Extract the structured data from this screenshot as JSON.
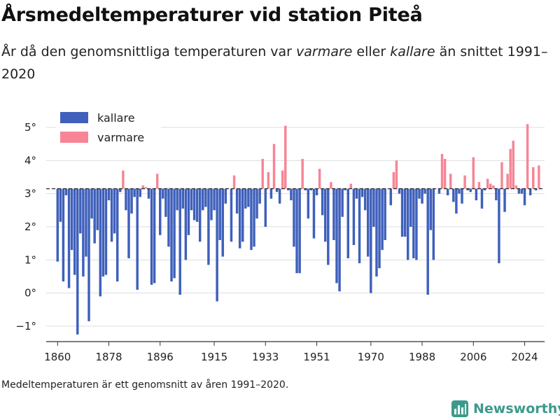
{
  "title": "Årsmedeltemperaturer vid station Piteå",
  "subtitle": {
    "part1": "År då den genomsnittliga temperaturen var ",
    "em1": "varmare",
    "part2": " eller ",
    "em2": "kallare",
    "part3": " än snittet 1991–2020"
  },
  "footnote": "Medeltemperaturen är ett genomsnitt av åren 1991–2020.",
  "brand": {
    "name": "Newsworthy",
    "logo_icon": "bar-chart-logo-icon",
    "color": "#3c9a8c"
  },
  "chart_data": {
    "type": "bar",
    "baseline": 3.15,
    "baseline_style": "dashed",
    "ylim": [
      -1.45,
      5.6
    ],
    "yticks": [
      -1,
      0,
      1,
      2,
      3,
      4,
      5
    ],
    "ytick_labels": [
      "−1°",
      "0°",
      "1°",
      "2°",
      "3°",
      "4°",
      "5°"
    ],
    "xticks": [
      1860,
      1878,
      1896,
      1915,
      1933,
      1951,
      1970,
      1988,
      2006,
      2024
    ],
    "xlim": [
      1856,
      2031
    ],
    "grid": "horizontal",
    "legend": {
      "position": "top-left",
      "entries": [
        {
          "label": "kallare",
          "color": "#3f60bb"
        },
        {
          "label": "varmare",
          "color": "#f78595"
        }
      ]
    },
    "colors": {
      "colder": "#3f60bb",
      "warmer": "#f78595"
    },
    "start_year": 1860,
    "values": [
      0.95,
      2.15,
      0.35,
      2.95,
      0.15,
      1.3,
      0.55,
      -1.25,
      1.8,
      0.5,
      1.1,
      -0.85,
      2.25,
      1.5,
      1.9,
      -0.1,
      0.5,
      0.55,
      2.8,
      1.55,
      1.8,
      0.35,
      3.05,
      3.7,
      2.5,
      1.05,
      2.4,
      2.9,
      0.1,
      2.9,
      3.25,
      3.2,
      2.85,
      0.25,
      0.3,
      3.6,
      1.75,
      2.85,
      2.3,
      1.4,
      0.35,
      0.45,
      2.5,
      -0.05,
      2.55,
      1.0,
      1.75,
      2.5,
      2.2,
      2.15,
      1.55,
      2.5,
      2.6,
      0.85,
      2.2,
      2.5,
      -0.25,
      1.6,
      1.1,
      2.7,
      3.15,
      1.55,
      3.55,
      2.4,
      1.35,
      1.55,
      2.55,
      2.6,
      1.3,
      1.4,
      2.25,
      2.7,
      4.05,
      2.0,
      3.65,
      2.85,
      4.5,
      3.05,
      2.7,
      3.7,
      5.05,
      3.1,
      2.8,
      1.4,
      0.6,
      0.6,
      4.05,
      3.1,
      2.25,
      3.1,
      1.65,
      2.95,
      3.75,
      2.35,
      1.55,
      0.85,
      3.35,
      1.6,
      0.3,
      0.05,
      2.3,
      3.1,
      1.05,
      3.3,
      1.45,
      2.85,
      0.9,
      2.9,
      2.5,
      1.1,
      0.0,
      2.0,
      0.5,
      0.75,
      1.3,
      1.6,
      3.15,
      2.65,
      3.65,
      4.0,
      3.0,
      1.7,
      1.7,
      1.0,
      2.0,
      1.05,
      1.0,
      2.85,
      2.7,
      3.0,
      -0.05,
      1.9,
      1.0,
      3.15,
      3.0,
      4.2,
      4.05,
      2.95,
      3.6,
      2.75,
      2.4,
      3.0,
      2.7,
      3.55,
      3.1,
      3.05,
      4.1,
      2.8,
      3.35,
      2.55,
      3.1,
      3.45,
      3.3,
      3.25,
      2.8,
      0.9,
      3.95,
      2.45,
      3.6,
      4.35,
      4.6,
      3.25,
      3.0,
      3.0,
      2.65,
      5.1,
      2.95,
      3.8,
      3.1,
      3.85
    ]
  }
}
